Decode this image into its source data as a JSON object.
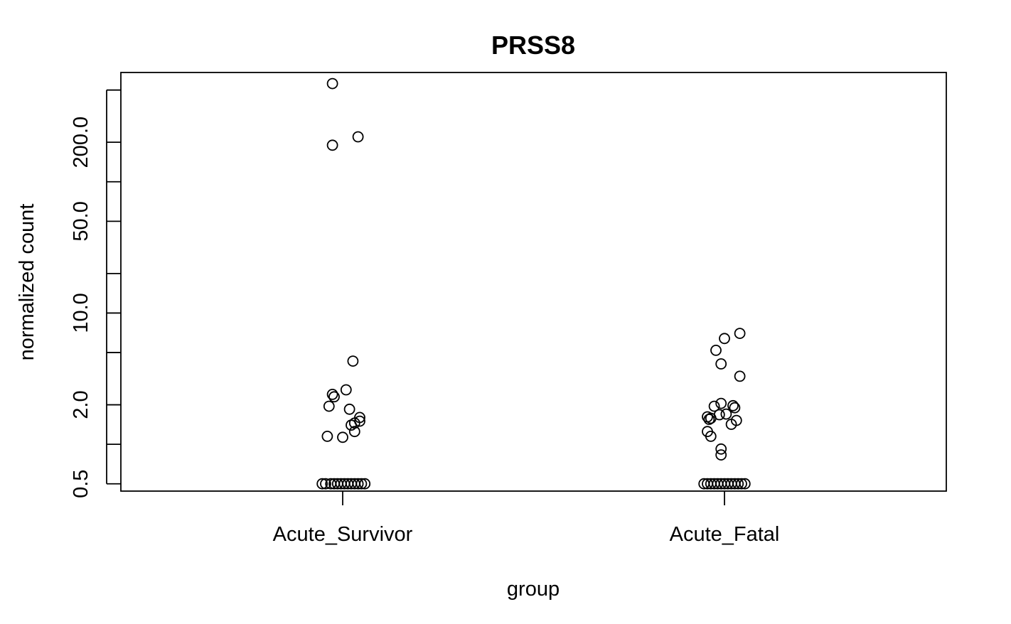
{
  "chart_data": {
    "type": "scatter",
    "title": "PRSS8",
    "xlabel": "group",
    "ylabel": "normalized count",
    "y_scale": "log",
    "ylim": [
      0.44,
      680
    ],
    "yticks": [
      0.5,
      1,
      2,
      5,
      10,
      20,
      50,
      100,
      200,
      500
    ],
    "ytick_labels": [
      "0.5",
      "",
      "2.0",
      "",
      "10.0",
      "",
      "50.0",
      "",
      "200.0",
      ""
    ],
    "categories": [
      "Acute_Survivor",
      "Acute_Fatal"
    ],
    "series": [
      {
        "category": "Acute_Survivor",
        "points": [
          {
            "jitter": -0.06,
            "y": 560
          },
          {
            "jitter": -0.06,
            "y": 190
          },
          {
            "jitter": 0.09,
            "y": 220
          },
          {
            "jitter": 0.06,
            "y": 4.3
          },
          {
            "jitter": 0.02,
            "y": 2.6
          },
          {
            "jitter": -0.06,
            "y": 2.4
          },
          {
            "jitter": -0.05,
            "y": 2.3
          },
          {
            "jitter": -0.08,
            "y": 1.95
          },
          {
            "jitter": 0.04,
            "y": 1.85
          },
          {
            "jitter": 0.1,
            "y": 1.6
          },
          {
            "jitter": 0.1,
            "y": 1.5
          },
          {
            "jitter": 0.07,
            "y": 1.45
          },
          {
            "jitter": 0.05,
            "y": 1.4
          },
          {
            "jitter": 0.07,
            "y": 1.25
          },
          {
            "jitter": -0.09,
            "y": 1.15
          },
          {
            "jitter": 0.0,
            "y": 1.13
          },
          {
            "jitter": -0.12,
            "y": 0.5
          },
          {
            "jitter": -0.1,
            "y": 0.5
          },
          {
            "jitter": -0.07,
            "y": 0.5
          },
          {
            "jitter": -0.05,
            "y": 0.5
          },
          {
            "jitter": -0.03,
            "y": 0.5
          },
          {
            "jitter": -0.01,
            "y": 0.5
          },
          {
            "jitter": 0.01,
            "y": 0.5
          },
          {
            "jitter": 0.03,
            "y": 0.5
          },
          {
            "jitter": 0.05,
            "y": 0.5
          },
          {
            "jitter": 0.07,
            "y": 0.5
          },
          {
            "jitter": 0.09,
            "y": 0.5
          },
          {
            "jitter": 0.11,
            "y": 0.5
          },
          {
            "jitter": 0.13,
            "y": 0.5
          }
        ]
      },
      {
        "category": "Acute_Fatal",
        "points": [
          {
            "jitter": 0.09,
            "y": 7.0
          },
          {
            "jitter": 0.0,
            "y": 6.4
          },
          {
            "jitter": -0.05,
            "y": 5.2
          },
          {
            "jitter": -0.02,
            "y": 4.1
          },
          {
            "jitter": 0.09,
            "y": 3.3
          },
          {
            "jitter": -0.02,
            "y": 2.05
          },
          {
            "jitter": -0.06,
            "y": 1.95
          },
          {
            "jitter": 0.05,
            "y": 1.97
          },
          {
            "jitter": 0.06,
            "y": 1.9
          },
          {
            "jitter": 0.01,
            "y": 1.7
          },
          {
            "jitter": -0.03,
            "y": 1.68
          },
          {
            "jitter": -0.1,
            "y": 1.62
          },
          {
            "jitter": -0.08,
            "y": 1.58
          },
          {
            "jitter": -0.09,
            "y": 1.55
          },
          {
            "jitter": 0.07,
            "y": 1.52
          },
          {
            "jitter": 0.04,
            "y": 1.42
          },
          {
            "jitter": -0.1,
            "y": 1.25
          },
          {
            "jitter": -0.08,
            "y": 1.15
          },
          {
            "jitter": -0.02,
            "y": 0.92
          },
          {
            "jitter": -0.02,
            "y": 0.83
          },
          {
            "jitter": -0.12,
            "y": 0.5
          },
          {
            "jitter": -0.1,
            "y": 0.5
          },
          {
            "jitter": -0.08,
            "y": 0.5
          },
          {
            "jitter": -0.06,
            "y": 0.5
          },
          {
            "jitter": -0.04,
            "y": 0.5
          },
          {
            "jitter": -0.02,
            "y": 0.5
          },
          {
            "jitter": 0.0,
            "y": 0.5
          },
          {
            "jitter": 0.02,
            "y": 0.5
          },
          {
            "jitter": 0.04,
            "y": 0.5
          },
          {
            "jitter": 0.06,
            "y": 0.5
          },
          {
            "jitter": 0.08,
            "y": 0.5
          },
          {
            "jitter": 0.1,
            "y": 0.5
          },
          {
            "jitter": 0.12,
            "y": 0.5
          }
        ]
      }
    ],
    "marker": "open-circle",
    "grid": false,
    "legend": "none"
  }
}
